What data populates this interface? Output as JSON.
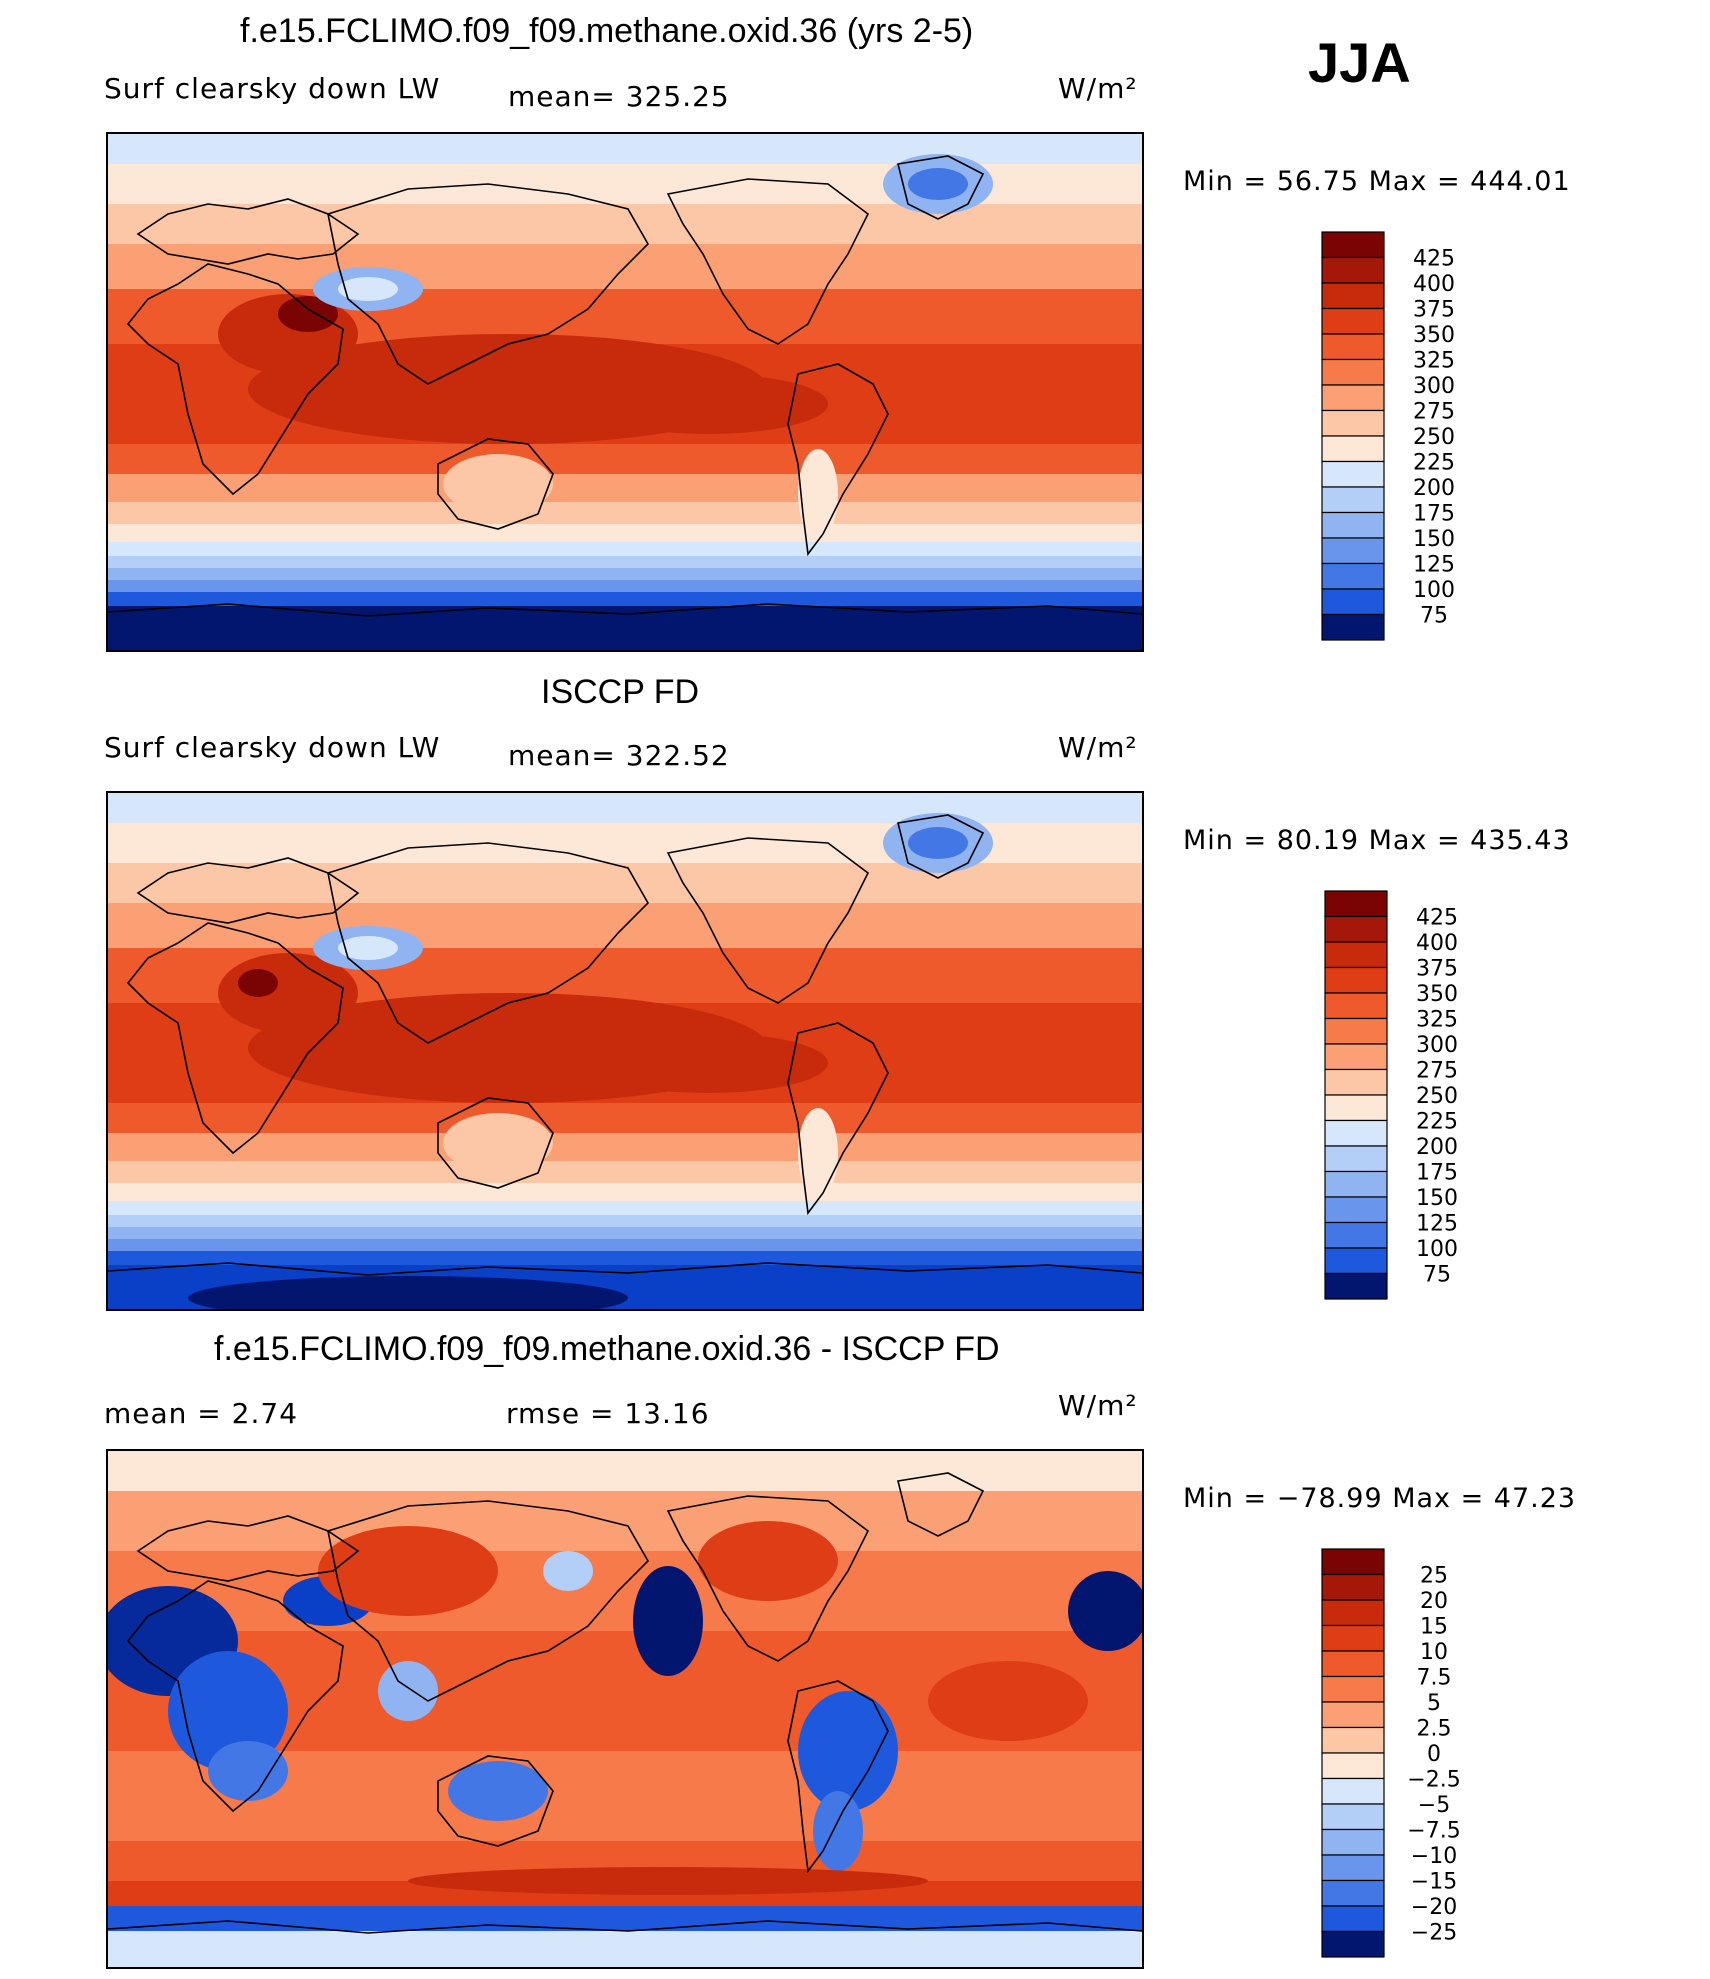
{
  "season": "JJA",
  "colors": {
    "warm": [
      "#fde7d6",
      "#fcc7a6",
      "#fb9f74",
      "#f67a4a",
      "#ee5a2b",
      "#df3d15",
      "#c82a0c",
      "#a51708",
      "#7a0404"
    ],
    "cool": [
      "#d6e7fb",
      "#b4cff7",
      "#90b3f1",
      "#6a95ec",
      "#4477e6",
      "#1e58dd",
      "#0a3fc7",
      "#06299b",
      "#03166f"
    ],
    "zero": "#ffffff"
  },
  "panels": [
    {
      "title": "f.e15.FCLIMO.f09_f09.methane.oxid.36 (yrs 2-5)",
      "left_label": "Surf  clearsky  down  LW",
      "mid_label": "mean=  325.25",
      "units_label": "W/m²",
      "minmax": "Min  =    56.75  Max  =  444.01"
    },
    {
      "title": "ISCCP FD",
      "left_label": "Surf  clearsky  down  LW",
      "mid_label": "mean=  322.52",
      "units_label": "W/m²",
      "minmax": "Min  =    80.19  Max  =  435.43"
    },
    {
      "title": "f.e15.FCLIMO.f09_f09.methane.oxid.36 - ISCCP FD",
      "left_label": "mean  =     2.74",
      "mid_label": "rmse  =    13.16",
      "units_label": "W/m²",
      "minmax": "Min  =  −78.99  Max  =    47.23"
    }
  ],
  "chart_data": [
    {
      "type": "heatmap",
      "title": "f.e15.FCLIMO.f09_f09.methane.oxid.36 (yrs 2-5)",
      "variable": "Surf clearsky down LW",
      "units": "W/m²",
      "season": "JJA",
      "mean": 325.25,
      "min": 56.75,
      "max": 444.01,
      "colorbar_levels": [
        "425",
        "400",
        "375",
        "350",
        "325",
        "300",
        "275",
        "250",
        "225",
        "200",
        "175",
        "150",
        "125",
        "100",
        "75"
      ]
    },
    {
      "type": "heatmap",
      "title": "ISCCP FD",
      "variable": "Surf clearsky down LW",
      "units": "W/m²",
      "season": "JJA",
      "mean": 322.52,
      "min": 80.19,
      "max": 435.43,
      "colorbar_levels": [
        "425",
        "400",
        "375",
        "350",
        "325",
        "300",
        "275",
        "250",
        "225",
        "200",
        "175",
        "150",
        "125",
        "100",
        "75"
      ]
    },
    {
      "type": "heatmap",
      "title": "f.e15.FCLIMO.f09_f09.methane.oxid.36 - ISCCP FD",
      "units": "W/m²",
      "season": "JJA",
      "mean": 2.74,
      "rmse": 13.16,
      "min": -78.99,
      "max": 47.23,
      "colorbar_levels": [
        "25",
        "20",
        "15",
        "10",
        "7.5",
        "5",
        "2.5",
        "0",
        "−2.5",
        "−5",
        "−7.5",
        "−10",
        "−15",
        "−20",
        "−25"
      ]
    }
  ]
}
